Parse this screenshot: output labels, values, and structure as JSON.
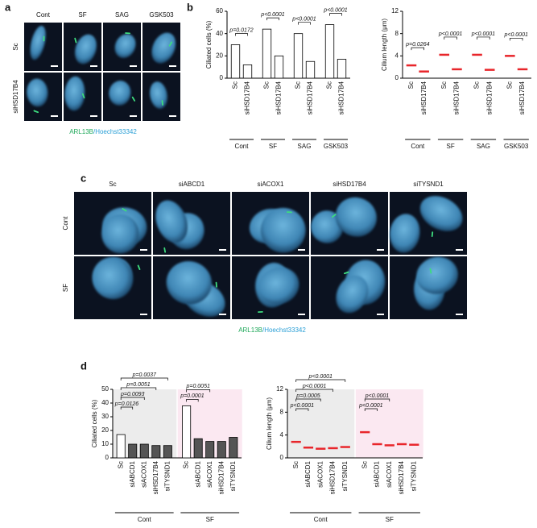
{
  "panel_a": {
    "label": "a",
    "columns": [
      "Cont",
      "SF",
      "SAG",
      "GSK503"
    ],
    "rows": [
      "Sc",
      "siHSD17B4"
    ],
    "caption": [
      "ARL13B",
      "/Hoechst33342"
    ]
  },
  "panel_b": {
    "label": "b"
  },
  "panel_c": {
    "label": "c",
    "columns": [
      "Sc",
      "siABCD1",
      "siACOX1",
      "siHSD17B4",
      "siTYSND1"
    ],
    "rows": [
      "Cont",
      "SF"
    ],
    "caption": [
      "ARL13B",
      "/Hoechst33342"
    ]
  },
  "panel_d": {
    "label": "d"
  },
  "chart_data": [
    {
      "type": "bar",
      "y_label": "Ciliated cells (%)",
      "ylim": [
        0,
        60
      ],
      "yticks": [
        0,
        20,
        40,
        60
      ],
      "brackets": "pair",
      "groups": [
        {
          "label": "Cont",
          "categories": [
            "Sc",
            "siHSD17B4"
          ],
          "values": [
            30,
            12
          ],
          "colors": [
            "#ffffff",
            "#ffffff"
          ],
          "annotations": [
            "p=0.0172"
          ]
        },
        {
          "label": "SF",
          "categories": [
            "Sc",
            "siHSD17B4"
          ],
          "values": [
            44,
            20
          ],
          "colors": [
            "#ffffff",
            "#ffffff"
          ],
          "annotations": [
            "p<0.0001"
          ]
        },
        {
          "label": "SAG",
          "categories": [
            "Sc",
            "siHSD17B4"
          ],
          "values": [
            40,
            15
          ],
          "colors": [
            "#ffffff",
            "#ffffff"
          ],
          "annotations": [
            "p<0.0001"
          ]
        },
        {
          "label": "GSK503",
          "categories": [
            "Sc",
            "siHSD17B4"
          ],
          "values": [
            48,
            17
          ],
          "colors": [
            "#ffffff",
            "#ffffff"
          ],
          "annotations": [
            "p<0.0001"
          ]
        }
      ]
    },
    {
      "type": "strip",
      "y_label": "Cilium length (μm)",
      "ylim": [
        0,
        12
      ],
      "yticks": [
        0,
        4,
        8,
        12
      ],
      "brackets": "pair",
      "median_color": "#e8262b",
      "groups": [
        {
          "label": "Cont",
          "categories": [
            "Sc",
            "siHSD17B4"
          ],
          "values": [
            2.3,
            1.2
          ],
          "annotations": [
            "p=0.0264"
          ]
        },
        {
          "label": "SF",
          "categories": [
            "Sc",
            "siHSD17B4"
          ],
          "values": [
            4.2,
            1.6
          ],
          "annotations": [
            "p<0.0001"
          ]
        },
        {
          "label": "SAG",
          "categories": [
            "Sc",
            "siHSD17B4"
          ],
          "values": [
            4.2,
            1.5
          ],
          "annotations": [
            "p<0.0001"
          ]
        },
        {
          "label": "GSK503",
          "categories": [
            "Sc",
            "siHSD17B4"
          ],
          "values": [
            4.0,
            1.6
          ],
          "annotations": [
            "p<0.0001"
          ]
        }
      ]
    },
    {
      "type": "bar",
      "y_label": "Ciliated cells (%)",
      "ylim": [
        0,
        50
      ],
      "yticks": [
        0,
        10,
        20,
        30,
        40,
        50
      ],
      "brackets": "stack",
      "shading": [
        "#ececec",
        "#fbe8f1"
      ],
      "groups": [
        {
          "label": "Cont",
          "categories": [
            "Sc",
            "siABCD1",
            "siACOX1",
            "siHSD17B4",
            "siTYSND1"
          ],
          "values": [
            17,
            10,
            10,
            9,
            9
          ],
          "colors": [
            "#ffffff",
            "#555555",
            "#555555",
            "#555555",
            "#555555"
          ],
          "annotations": [
            "p=0.0126",
            "p=0.0093",
            "p=0.0051",
            "p=0.0037"
          ]
        },
        {
          "label": "SF",
          "categories": [
            "Sc",
            "siABCD1",
            "siACOX1",
            "siHSD17B4",
            "siTYSND1"
          ],
          "values": [
            38,
            14,
            12,
            12,
            15
          ],
          "colors": [
            "#ffffff",
            "#555555",
            "#555555",
            "#555555",
            "#555555"
          ],
          "annotations": [
            "p=0.0001",
            "p=0.0051"
          ]
        }
      ]
    },
    {
      "type": "strip",
      "y_label": "Cilium length (μm)",
      "ylim": [
        0,
        12
      ],
      "yticks": [
        0,
        4,
        8,
        12
      ],
      "brackets": "stack",
      "median_color": "#e8262b",
      "shading": [
        "#ececec",
        "#fbe8f1"
      ],
      "groups": [
        {
          "label": "Cont",
          "categories": [
            "Sc",
            "siABCD1",
            "siACOX1",
            "siHSD17B4",
            "siTYSND1"
          ],
          "values": [
            2.8,
            1.8,
            1.6,
            1.7,
            1.9
          ],
          "annotations": [
            "p<0.0001",
            "p=0.0005",
            "p<0.0001",
            "p<0.0001"
          ]
        },
        {
          "label": "SF",
          "categories": [
            "Sc",
            "siABCD1",
            "siACOX1",
            "siHSD17B4",
            "siTYSND1"
          ],
          "values": [
            4.5,
            2.4,
            2.2,
            2.4,
            2.3
          ],
          "annotations": [
            "p<0.0001",
            "p<0.0001"
          ]
        }
      ]
    }
  ]
}
